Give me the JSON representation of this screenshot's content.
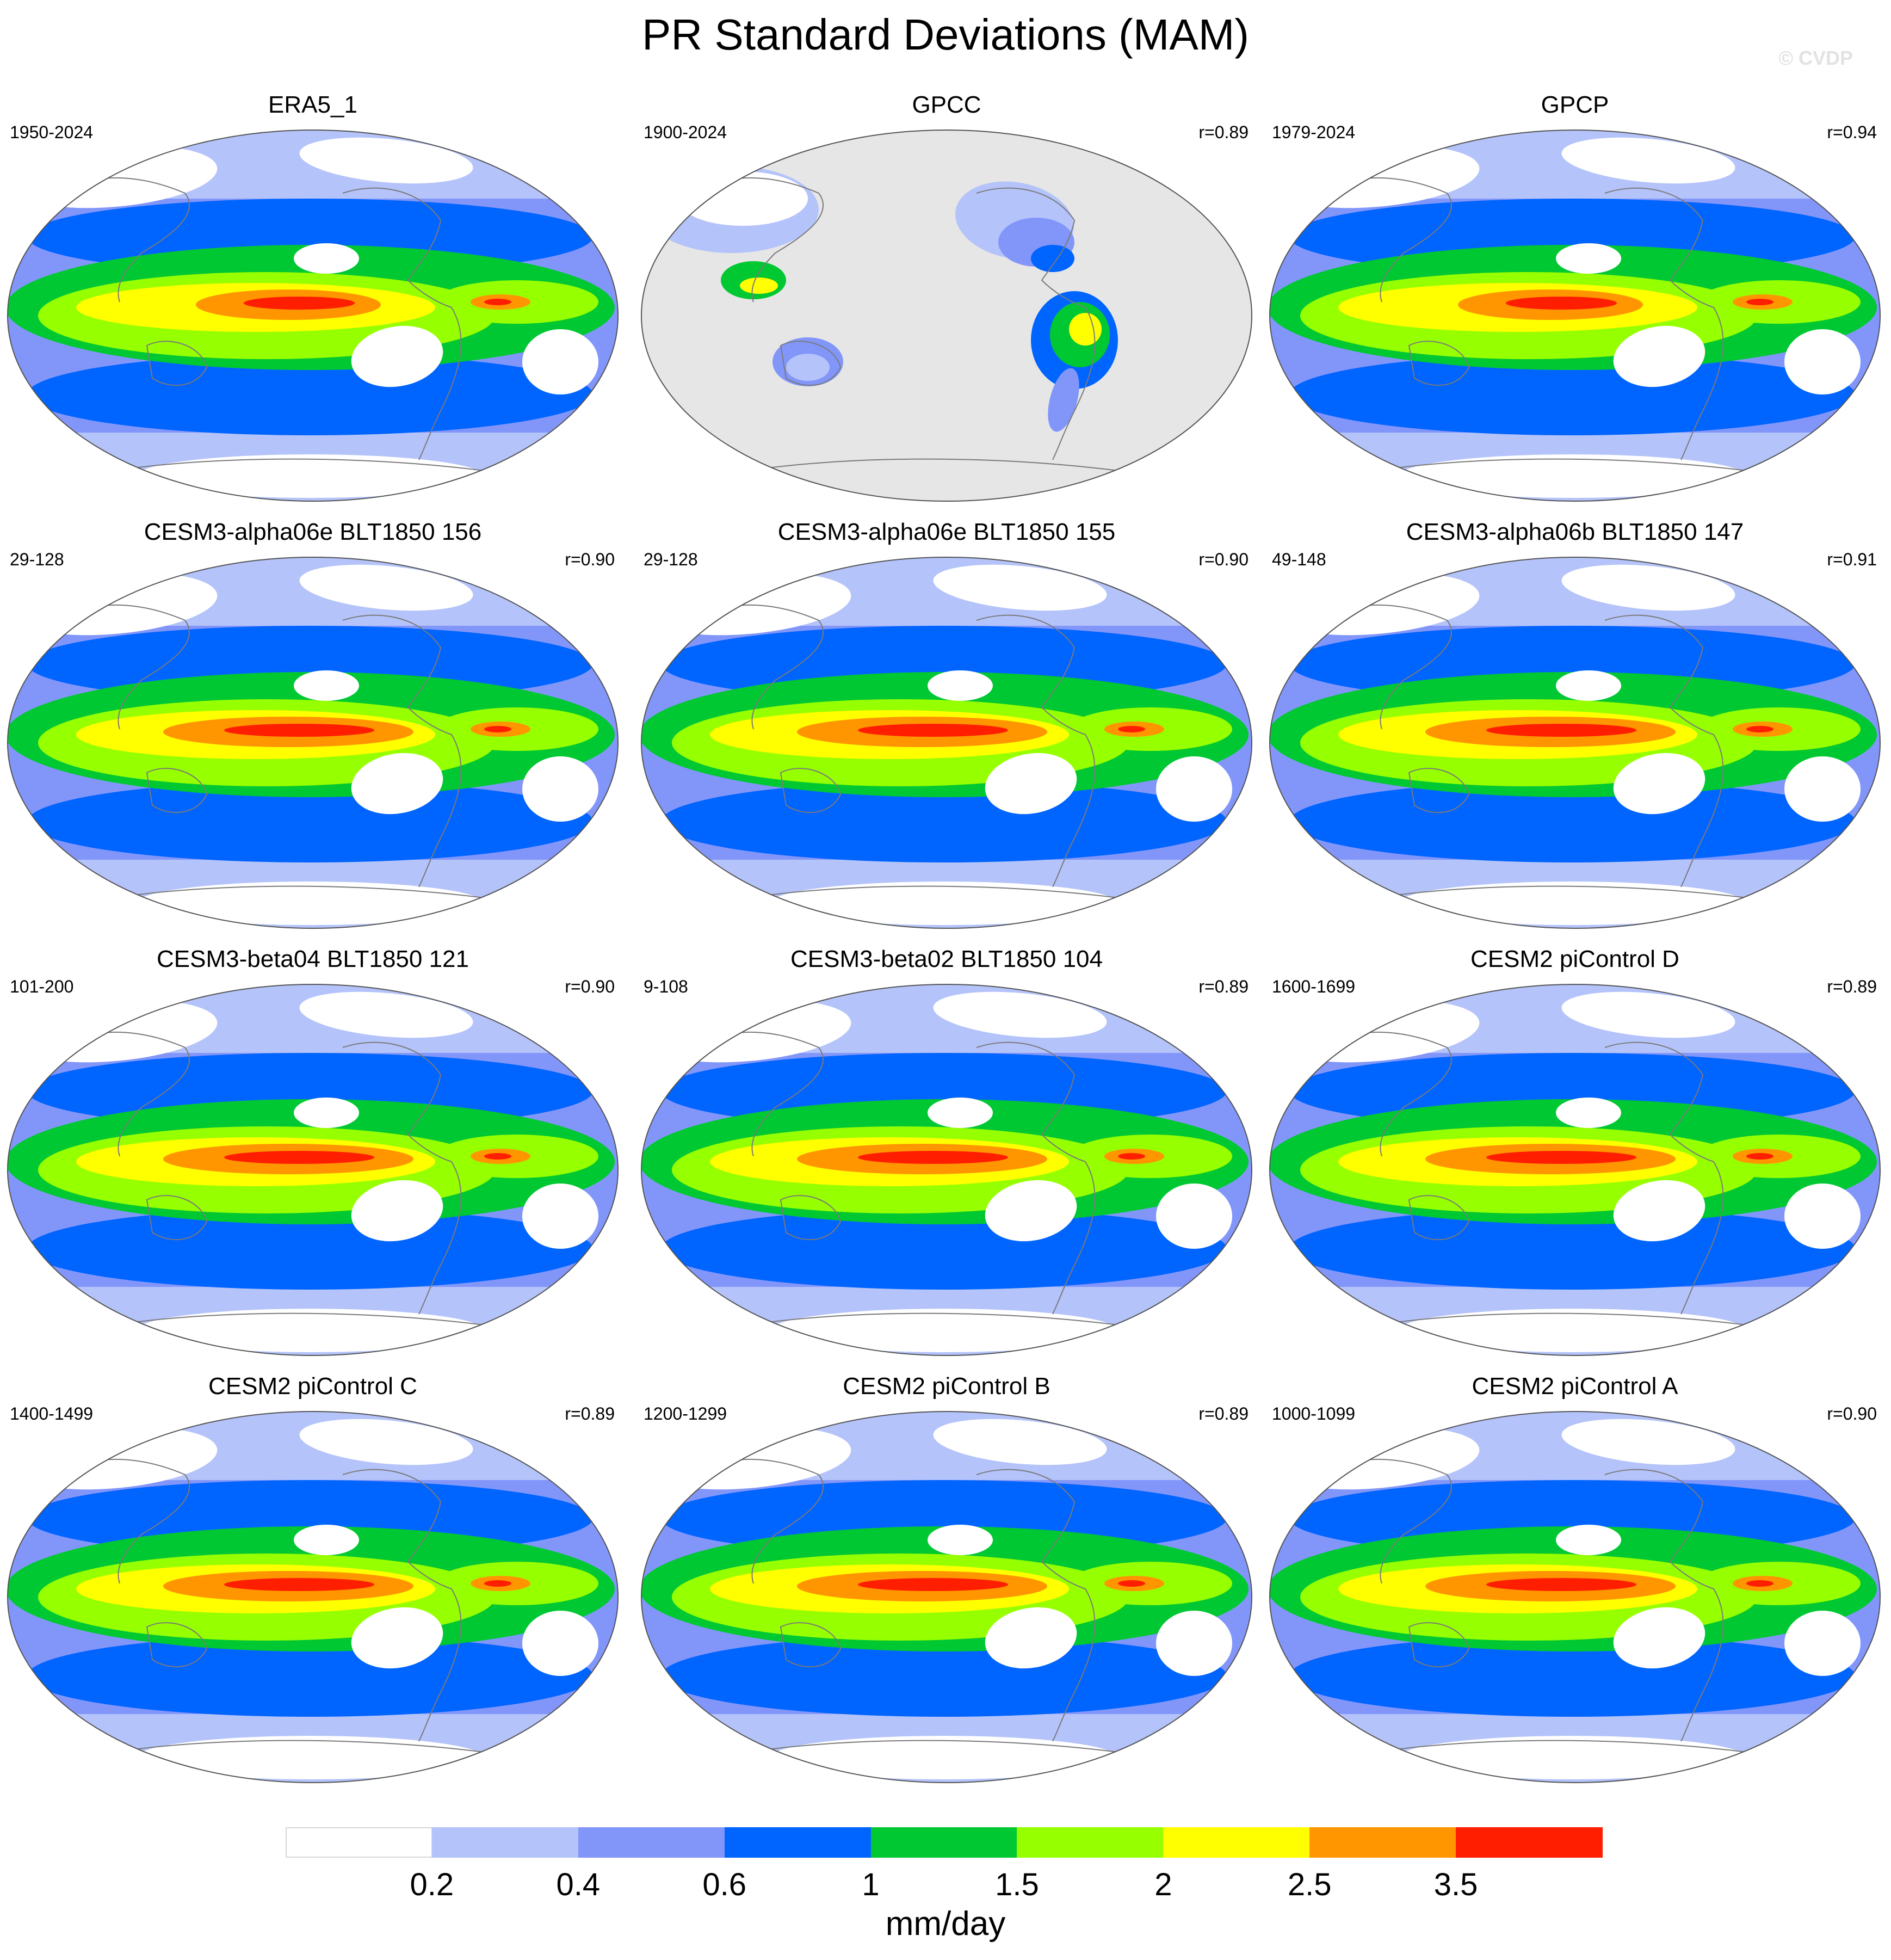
{
  "title": "PR Standard Deviations (MAM)",
  "watermark": "© CVDP",
  "panels": [
    {
      "title": "ERA5_1",
      "period": "1950-2024",
      "r": "",
      "style": "obs"
    },
    {
      "title": "GPCC",
      "period": "1900-2024",
      "r": "r=0.89",
      "style": "land"
    },
    {
      "title": "GPCP",
      "period": "1979-2024",
      "r": "r=0.94",
      "style": "obs"
    },
    {
      "title": "CESM3-alpha06e BLT1850 156",
      "period": "29-128",
      "r": "r=0.90",
      "style": "model"
    },
    {
      "title": "CESM3-alpha06e BLT1850 155",
      "period": "29-128",
      "r": "r=0.90",
      "style": "model"
    },
    {
      "title": "CESM3-alpha06b BLT1850 147",
      "period": "49-148",
      "r": "r=0.91",
      "style": "model"
    },
    {
      "title": "CESM3-beta04 BLT1850 121",
      "period": "101-200",
      "r": "r=0.90",
      "style": "model"
    },
    {
      "title": "CESM3-beta02 BLT1850 104",
      "period": "9-108",
      "r": "r=0.89",
      "style": "model"
    },
    {
      "title": "CESM2 piControl D",
      "period": "1600-1699",
      "r": "r=0.89",
      "style": "model"
    },
    {
      "title": "CESM2 piControl C",
      "period": "1400-1499",
      "r": "r=0.89",
      "style": "model"
    },
    {
      "title": "CESM2 piControl B",
      "period": "1200-1299",
      "r": "r=0.89",
      "style": "model"
    },
    {
      "title": "CESM2 piControl A",
      "period": "1000-1099",
      "r": "r=0.90",
      "style": "model"
    }
  ],
  "colorbar": {
    "units": "mm/day",
    "labels": [
      "0.2",
      "0.4",
      "0.6",
      "1",
      "1.5",
      "2",
      "2.5",
      "3.5"
    ],
    "colors": [
      "#ffffff",
      "#b4c3fa",
      "#8296fa",
      "#0064ff",
      "#00c832",
      "#96ff00",
      "#ffff00",
      "#ff9600",
      "#ff1e00"
    ]
  },
  "palette": {
    "ocean_background": "#8296fa",
    "missing": "#e6e6e6",
    "coastline": "#7a7a7a"
  }
}
